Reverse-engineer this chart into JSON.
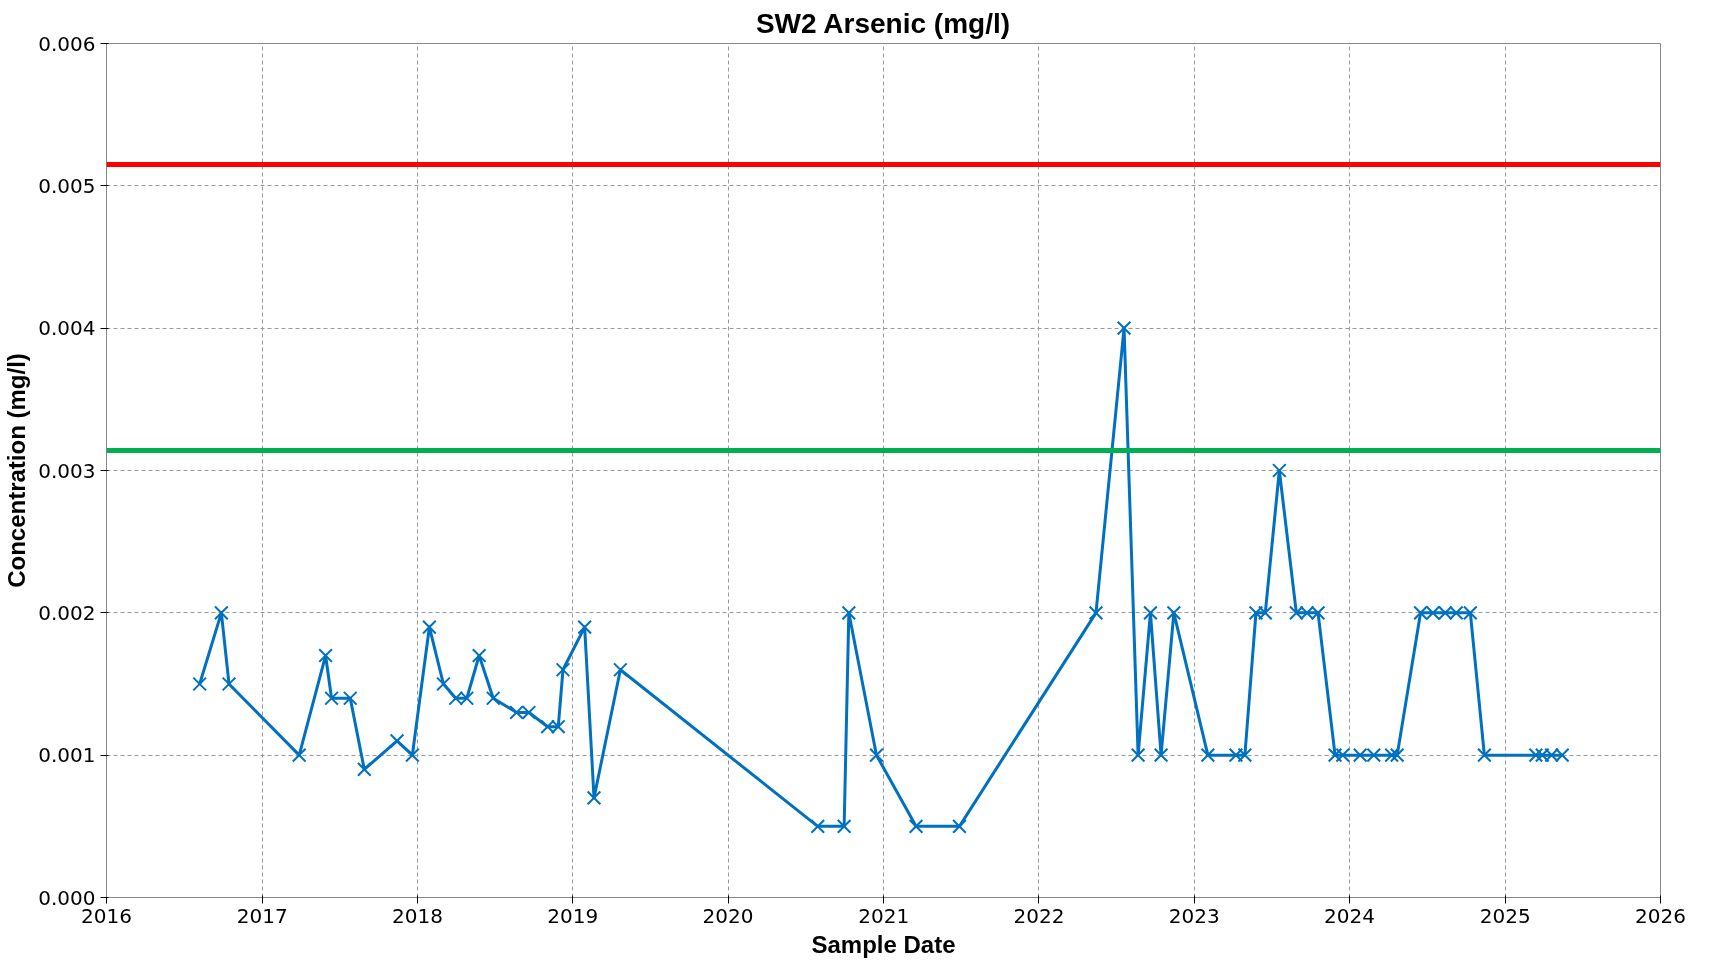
{
  "chart_data": {
    "type": "line",
    "title": "SW2 Arsenic (mg/l)",
    "xlabel": "Sample Date",
    "ylabel": "Concentration (mg/l)",
    "x": [
      "2016-08-07",
      "2016-09-27",
      "2016-10-15",
      "2017-03-29",
      "2017-05-30",
      "2017-06-13",
      "2017-07-27",
      "2017-08-29",
      "2017-11-14",
      "2017-12-20",
      "2018-01-29",
      "2018-03-03",
      "2018-04-01",
      "2018-04-27",
      "2018-05-26",
      "2018-06-28",
      "2018-08-22",
      "2018-09-20",
      "2018-11-03",
      "2018-11-28",
      "2018-12-09",
      "2019-01-29",
      "2019-02-20",
      "2019-04-23",
      "2020-07-30",
      "2020-09-30",
      "2020-10-11",
      "2020-12-15",
      "2021-03-18",
      "2021-06-28",
      "2022-05-15",
      "2022-07-20",
      "2022-08-22",
      "2022-09-20",
      "2022-10-15",
      "2022-11-14",
      "2023-02-02",
      "2023-04-09",
      "2023-04-30",
      "2023-05-26",
      "2023-06-17",
      "2023-07-20",
      "2023-08-29",
      "2023-09-23",
      "2023-10-19",
      "2023-11-28",
      "2023-12-16",
      "2024-01-26",
      "2024-02-27",
      "2024-04-09",
      "2024-04-22",
      "2024-06-16",
      "2024-07-15",
      "2024-08-13",
      "2024-09-08",
      "2024-10-11",
      "2024-11-13",
      "2025-03-14",
      "2025-03-29",
      "2025-04-20",
      "2025-05-15"
    ],
    "series": [
      {
        "color": "#0070c0",
        "values": [
          0.0015,
          0.002,
          0.0015,
          0.001,
          0.0017,
          0.0014,
          0.0014,
          0.0009,
          0.0011,
          0.001,
          0.0019,
          0.0015,
          0.0014,
          0.0014,
          0.0017,
          0.0014,
          0.0013,
          0.0013,
          0.0012,
          0.0012,
          0.0016,
          0.0019,
          0.0007,
          0.0016,
          0.0005,
          0.0005,
          0.002,
          0.001,
          0.0005,
          0.0005,
          0.002,
          0.004,
          0.001,
          0.002,
          0.001,
          0.002,
          0.001,
          0.001,
          0.001,
          0.002,
          0.002,
          0.003,
          0.002,
          0.002,
          0.002,
          0.001,
          0.001,
          0.001,
          0.001,
          0.001,
          0.001,
          0.002,
          0.002,
          0.002,
          0.002,
          0.002,
          0.001,
          0.001,
          0.001,
          0.001,
          0.001
        ]
      }
    ],
    "xlim": [
      "2016-01-01",
      "2026-01-01"
    ],
    "xticks": [
      "2016",
      "2017",
      "2018",
      "2019",
      "2020",
      "2021",
      "2022",
      "2023",
      "2024",
      "2025",
      "2026"
    ],
    "ylim": [
      0,
      0.006
    ],
    "yticks": [
      {
        "value": 0,
        "label": "0.000"
      },
      {
        "value": 0.001,
        "label": "0.001"
      },
      {
        "value": 0.002,
        "label": "0.002"
      },
      {
        "value": 0.003,
        "label": "0.003"
      },
      {
        "value": 0.004,
        "label": "0.004"
      },
      {
        "value": 0.005,
        "label": "0.005"
      },
      {
        "value": 0.006,
        "label": "0.006"
      }
    ],
    "ref_lines": [
      {
        "axis": "y",
        "value": 0.00515,
        "color": "#ff0000"
      },
      {
        "axis": "y",
        "value": 0.00314,
        "color": "#00b050"
      }
    ],
    "grid": true,
    "marker": "cross",
    "line_style": "solid"
  }
}
